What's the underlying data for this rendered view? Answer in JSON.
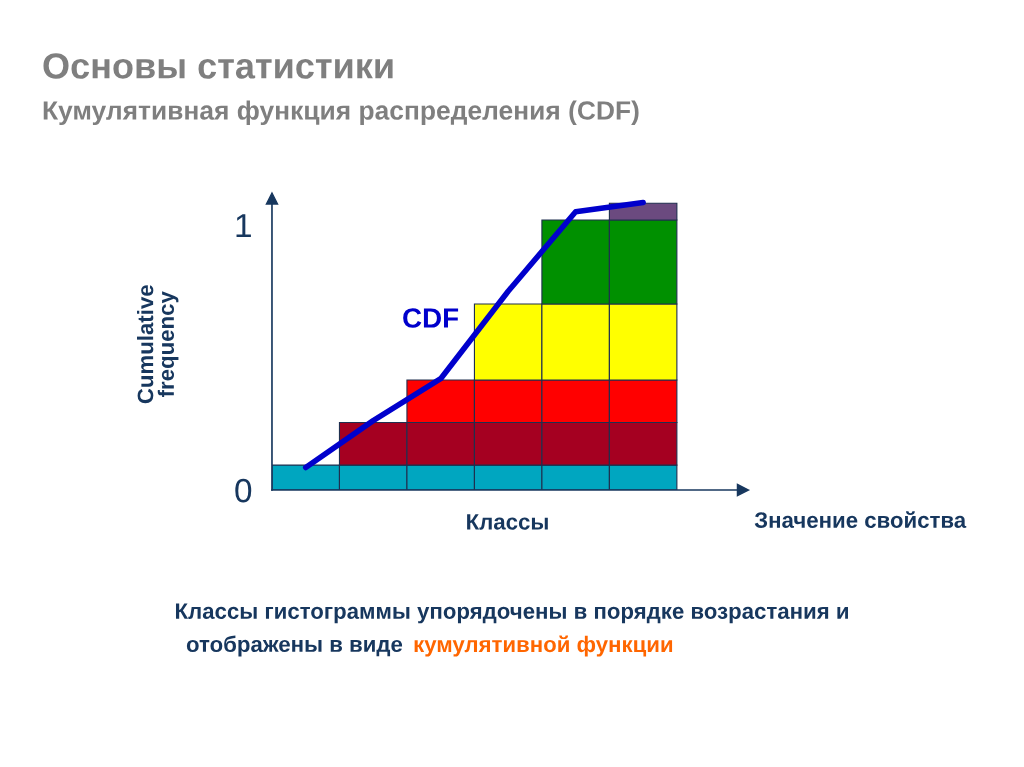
{
  "chart_data": {
    "type": "bar",
    "stacked": true,
    "title": "Основы статистики",
    "subtitle": "Кумулятивная функция распределения (CDF)",
    "xlabel": "Классы",
    "ylabel": "Cumulative\nfrequency",
    "categories": [
      null,
      null,
      null,
      null,
      null,
      null
    ],
    "series": [
      {
        "color": "#00a6c0",
        "values": [
          0.094,
          0.094,
          0.094,
          0.094,
          0.094,
          0.094
        ]
      },
      {
        "color": "#a50021",
        "values": [
          null,
          0.161,
          0.161,
          0.161,
          0.161,
          0.161
        ]
      },
      {
        "color": "#ff0000",
        "values": [
          null,
          null,
          0.16,
          0.16,
          0.16,
          0.16
        ]
      },
      {
        "color": "#ffff00",
        "values": [
          null,
          null,
          null,
          0.287,
          0.287,
          0.287
        ]
      },
      {
        "color": "#009000",
        "values": [
          null,
          null,
          null,
          null,
          0.317,
          0.317
        ]
      },
      {
        "color": "#6b4a7f",
        "values": [
          null,
          null,
          null,
          null,
          null,
          0.063
        ]
      },
      {
        "type": "line",
        "name": "CDF",
        "color": "#0000cc",
        "values": [
          0.085,
          0.262,
          0.42,
          0.75,
          1.05,
          1.085
        ]
      }
    ],
    "ylim": [
      0,
      1.1
    ],
    "yticks": [
      0,
      1
    ],
    "legend": false,
    "grid": false,
    "annotations": [
      "Значение свойства",
      "Классы гистограммы упорядочены в порядке возрастания и",
      "отображены в виде ",
      "кумулятивной функции"
    ]
  }
}
